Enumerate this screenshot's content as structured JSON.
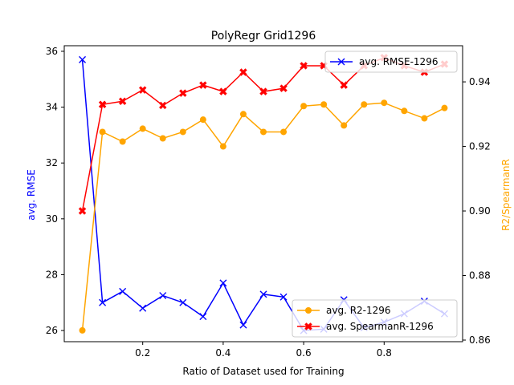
{
  "chart_data": {
    "type": "line",
    "title": "PolyRegr Grid1296",
    "xlabel": "Ratio of Dataset used for Training",
    "ylabel_left": "avg. RMSE",
    "ylabel_right": "R2/SpearmanR",
    "x": [
      0.05,
      0.1,
      0.15,
      0.2,
      0.25,
      0.3,
      0.35,
      0.4,
      0.45,
      0.5,
      0.55,
      0.6,
      0.65,
      0.7,
      0.75,
      0.8,
      0.85,
      0.9,
      0.95
    ],
    "xlim": [
      0.005,
      0.995
    ],
    "xticks": [
      "0.2",
      "0.4",
      "0.6",
      "0.8"
    ],
    "xtick_values": [
      0.2,
      0.4,
      0.6,
      0.8
    ],
    "ylim_left": [
      25.6,
      36.2
    ],
    "yticks_left": [
      "26",
      "28",
      "30",
      "32",
      "34",
      "36"
    ],
    "ytick_values_left": [
      26,
      28,
      30,
      32,
      34,
      36
    ],
    "ylim_right": [
      0.8595,
      0.9512
    ],
    "yticks_right": [
      "0.86",
      "0.88",
      "0.90",
      "0.92",
      "0.94"
    ],
    "ytick_values_right": [
      0.86,
      0.88,
      0.9,
      0.92,
      0.94
    ],
    "grid": false,
    "series": [
      {
        "name": "avg. RMSE-1296",
        "axis": "left",
        "color": "#0000ff",
        "marker": "x",
        "values": [
          35.7,
          27.0,
          27.4,
          26.8,
          27.25,
          27.0,
          26.5,
          27.7,
          26.2,
          27.3,
          27.2,
          26.0,
          26.05,
          27.1,
          26.1,
          26.3,
          26.6,
          27.05,
          26.6
        ]
      },
      {
        "name": "avg. R2-1296",
        "axis": "right",
        "color": "#ffa500",
        "marker": "o",
        "values": [
          0.863,
          0.9245,
          0.9215,
          0.9255,
          0.9225,
          0.9245,
          0.9283,
          0.92,
          0.93,
          0.9245,
          0.9245,
          0.9325,
          0.933,
          0.9265,
          0.933,
          0.9335,
          0.931,
          0.9287,
          0.9319
        ]
      },
      {
        "name": "avg. SpearmanR-1296",
        "axis": "right",
        "color": "#ff0000",
        "marker": "X",
        "values": [
          0.9,
          0.933,
          0.934,
          0.9375,
          0.9327,
          0.9365,
          0.939,
          0.937,
          0.943,
          0.937,
          0.938,
          0.945,
          0.945,
          0.939,
          0.945,
          0.9475,
          0.945,
          0.943,
          0.9455
        ]
      }
    ],
    "legends": [
      {
        "placement": "top-right",
        "entries": [
          "avg. RMSE-1296"
        ]
      },
      {
        "placement": "lower-right",
        "entries": [
          "avg. R2-1296",
          "avg. SpearmanR-1296"
        ]
      }
    ]
  }
}
